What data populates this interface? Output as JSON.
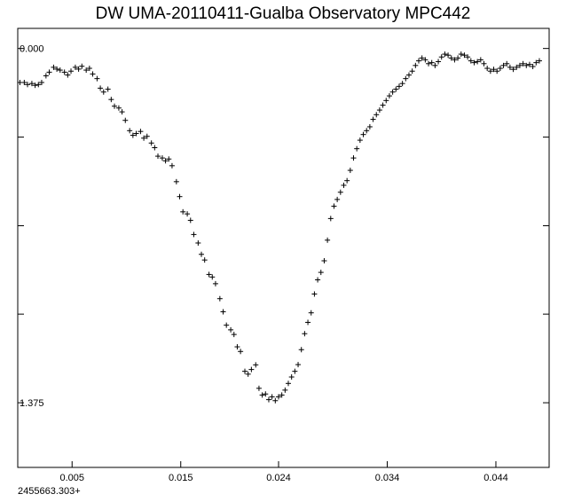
{
  "chart_data": {
    "type": "scatter",
    "title": "DW UMA-20110411-Gualba Observatory MPC442",
    "x_offset_label": "2455663.303+",
    "xlim": [
      0.0,
      0.0489
    ],
    "ylim": [
      1.626,
      -0.078
    ],
    "y_inverted": true,
    "x_ticks": [
      0.005,
      0.015,
      0.024,
      0.034,
      0.044
    ],
    "x_tick_labels": [
      "0.005",
      "0.015",
      "0.024",
      "0.034",
      "0.044"
    ],
    "y_ticks": [
      0.0,
      0.344,
      0.688,
      1.031,
      1.375
    ],
    "y_tick_labels": [
      "0.000",
      "",
      "",
      "",
      "1.375"
    ],
    "marker": "+",
    "grid": false,
    "legend": "none",
    "points": [
      [
        0.0002,
        0.132
      ],
      [
        0.0006,
        0.132
      ],
      [
        0.0009,
        0.14
      ],
      [
        0.0013,
        0.136
      ],
      [
        0.0016,
        0.143
      ],
      [
        0.0019,
        0.14
      ],
      [
        0.0022,
        0.132
      ],
      [
        0.0026,
        0.106
      ],
      [
        0.0029,
        0.092
      ],
      [
        0.0033,
        0.073
      ],
      [
        0.0036,
        0.08
      ],
      [
        0.0039,
        0.084
      ],
      [
        0.0043,
        0.092
      ],
      [
        0.0046,
        0.103
      ],
      [
        0.0049,
        0.088
      ],
      [
        0.0053,
        0.073
      ],
      [
        0.0056,
        0.08
      ],
      [
        0.0059,
        0.069
      ],
      [
        0.0063,
        0.084
      ],
      [
        0.0066,
        0.077
      ],
      [
        0.0069,
        0.099
      ],
      [
        0.0073,
        0.117
      ],
      [
        0.0076,
        0.154
      ],
      [
        0.0079,
        0.169
      ],
      [
        0.0083,
        0.158
      ],
      [
        0.0086,
        0.198
      ],
      [
        0.0089,
        0.224
      ],
      [
        0.0093,
        0.231
      ],
      [
        0.0096,
        0.246
      ],
      [
        0.0099,
        0.279
      ],
      [
        0.0103,
        0.319
      ],
      [
        0.0106,
        0.337
      ],
      [
        0.0109,
        0.33
      ],
      [
        0.0113,
        0.322
      ],
      [
        0.0116,
        0.348
      ],
      [
        0.0119,
        0.341
      ],
      [
        0.0123,
        0.367
      ],
      [
        0.0126,
        0.385
      ],
      [
        0.0129,
        0.418
      ],
      [
        0.0133,
        0.425
      ],
      [
        0.0136,
        0.436
      ],
      [
        0.0139,
        0.429
      ],
      [
        0.0142,
        0.455
      ],
      [
        0.0146,
        0.517
      ],
      [
        0.0149,
        0.575
      ],
      [
        0.0152,
        0.634
      ],
      [
        0.0156,
        0.642
      ],
      [
        0.0159,
        0.667
      ],
      [
        0.0162,
        0.722
      ],
      [
        0.0166,
        0.755
      ],
      [
        0.0169,
        0.799
      ],
      [
        0.0172,
        0.821
      ],
      [
        0.0176,
        0.877
      ],
      [
        0.0179,
        0.887
      ],
      [
        0.0182,
        0.913
      ],
      [
        0.0186,
        0.971
      ],
      [
        0.0189,
        1.022
      ],
      [
        0.0192,
        1.074
      ],
      [
        0.0196,
        1.092
      ],
      [
        0.0199,
        1.11
      ],
      [
        0.0202,
        1.158
      ],
      [
        0.0205,
        1.176
      ],
      [
        0.0209,
        1.253
      ],
      [
        0.0212,
        1.264
      ],
      [
        0.0215,
        1.246
      ],
      [
        0.0219,
        1.228
      ],
      [
        0.0222,
        1.319
      ],
      [
        0.0225,
        1.345
      ],
      [
        0.0228,
        1.341
      ],
      [
        0.0231,
        1.363
      ],
      [
        0.0234,
        1.352
      ],
      [
        0.0237,
        1.367
      ],
      [
        0.024,
        1.352
      ],
      [
        0.0243,
        1.345
      ],
      [
        0.0246,
        1.326
      ],
      [
        0.0249,
        1.3
      ],
      [
        0.0252,
        1.275
      ],
      [
        0.0255,
        1.253
      ],
      [
        0.0258,
        1.227
      ],
      [
        0.0261,
        1.169
      ],
      [
        0.0264,
        1.107
      ],
      [
        0.0267,
        1.063
      ],
      [
        0.027,
        1.026
      ],
      [
        0.0273,
        0.953
      ],
      [
        0.0276,
        0.898
      ],
      [
        0.0279,
        0.869
      ],
      [
        0.0282,
        0.824
      ],
      [
        0.0285,
        0.744
      ],
      [
        0.0288,
        0.66
      ],
      [
        0.0291,
        0.612
      ],
      [
        0.0294,
        0.586
      ],
      [
        0.0297,
        0.558
      ],
      [
        0.03,
        0.531
      ],
      [
        0.0303,
        0.513
      ],
      [
        0.0306,
        0.473
      ],
      [
        0.0309,
        0.425
      ],
      [
        0.0312,
        0.389
      ],
      [
        0.0315,
        0.356
      ],
      [
        0.0318,
        0.334
      ],
      [
        0.0321,
        0.319
      ],
      [
        0.0324,
        0.304
      ],
      [
        0.0327,
        0.275
      ],
      [
        0.033,
        0.257
      ],
      [
        0.0333,
        0.239
      ],
      [
        0.0336,
        0.22
      ],
      [
        0.0339,
        0.202
      ],
      [
        0.0342,
        0.184
      ],
      [
        0.0345,
        0.169
      ],
      [
        0.0348,
        0.158
      ],
      [
        0.0351,
        0.147
      ],
      [
        0.0354,
        0.136
      ],
      [
        0.0357,
        0.117
      ],
      [
        0.036,
        0.103
      ],
      [
        0.0363,
        0.088
      ],
      [
        0.0366,
        0.066
      ],
      [
        0.0369,
        0.048
      ],
      [
        0.0372,
        0.037
      ],
      [
        0.0375,
        0.044
      ],
      [
        0.0378,
        0.059
      ],
      [
        0.0381,
        0.055
      ],
      [
        0.0384,
        0.066
      ],
      [
        0.0387,
        0.051
      ],
      [
        0.039,
        0.033
      ],
      [
        0.0393,
        0.022
      ],
      [
        0.0396,
        0.026
      ],
      [
        0.0399,
        0.037
      ],
      [
        0.0402,
        0.044
      ],
      [
        0.0405,
        0.037
      ],
      [
        0.0408,
        0.022
      ],
      [
        0.0411,
        0.026
      ],
      [
        0.0414,
        0.033
      ],
      [
        0.0417,
        0.048
      ],
      [
        0.042,
        0.055
      ],
      [
        0.0423,
        0.051
      ],
      [
        0.0426,
        0.044
      ],
      [
        0.0429,
        0.059
      ],
      [
        0.0432,
        0.077
      ],
      [
        0.0435,
        0.088
      ],
      [
        0.0438,
        0.081
      ],
      [
        0.0441,
        0.088
      ],
      [
        0.0444,
        0.077
      ],
      [
        0.0447,
        0.066
      ],
      [
        0.045,
        0.059
      ],
      [
        0.0453,
        0.073
      ],
      [
        0.0456,
        0.081
      ],
      [
        0.0459,
        0.073
      ],
      [
        0.0462,
        0.066
      ],
      [
        0.0465,
        0.059
      ],
      [
        0.0468,
        0.066
      ],
      [
        0.0471,
        0.062
      ],
      [
        0.0474,
        0.07
      ],
      [
        0.0477,
        0.055
      ],
      [
        0.048,
        0.048
      ]
    ]
  }
}
